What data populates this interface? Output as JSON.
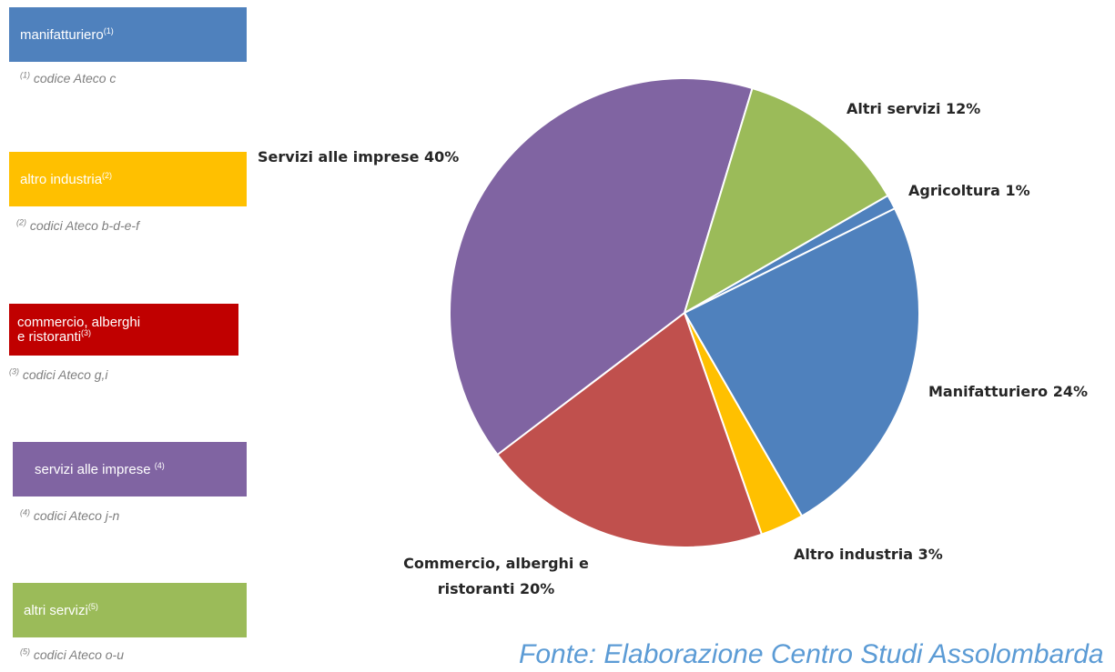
{
  "legend": [
    {
      "label": "manifatturiero",
      "sup": "(1)",
      "footnote_sup": "(1)",
      "footnote": " codice Ateco c",
      "color": "#4f81bd"
    },
    {
      "label": "altro industria",
      "sup": "(2)",
      "footnote_sup": "(2)",
      "footnote": " codici Ateco b-d-e-f",
      "color": "#ffc000"
    },
    {
      "label": "commercio, alberghi",
      "label2": "e ristoranti",
      "sup": "(3)",
      "footnote_sup": "(3)",
      "footnote": " codici Ateco g,i",
      "color": "#c00000"
    },
    {
      "label": "servizi alle imprese ",
      "sup": "(4)",
      "footnote_sup": "(4)",
      "footnote": " codici Ateco j-n",
      "color": "#8064a2"
    },
    {
      "label": "altri servizi",
      "sup": "(5)",
      "footnote_sup": "(5)",
      "footnote": " codici Ateco o-u",
      "color": "#9bbb59"
    }
  ],
  "chart_data": {
    "type": "pie",
    "slices": [
      {
        "name": "Agricoltura",
        "value": 1,
        "color": "#4f81bd",
        "label": "Agricoltura 1%"
      },
      {
        "name": "Manifatturiero",
        "value": 24,
        "color": "#4f81bd",
        "label": "Manifatturiero 24%"
      },
      {
        "name": "Altro industria",
        "value": 3,
        "color": "#ffc000",
        "label": "Altro industria 3%"
      },
      {
        "name": "Commercio, alberghi e ristoranti",
        "value": 20,
        "color": "#c0504d",
        "label_lines": [
          "Commercio, alberghi e",
          "ristoranti 20%"
        ]
      },
      {
        "name": "Servizi alle imprese",
        "value": 40,
        "color": "#8064a2",
        "label": "Servizi alle imprese 40%"
      },
      {
        "name": "Altri servizi",
        "value": 12,
        "color": "#9bbb59",
        "label": "Altri servizi 12%"
      }
    ]
  },
  "source": "Fonte: Elaborazione Centro Studi Assolombarda"
}
